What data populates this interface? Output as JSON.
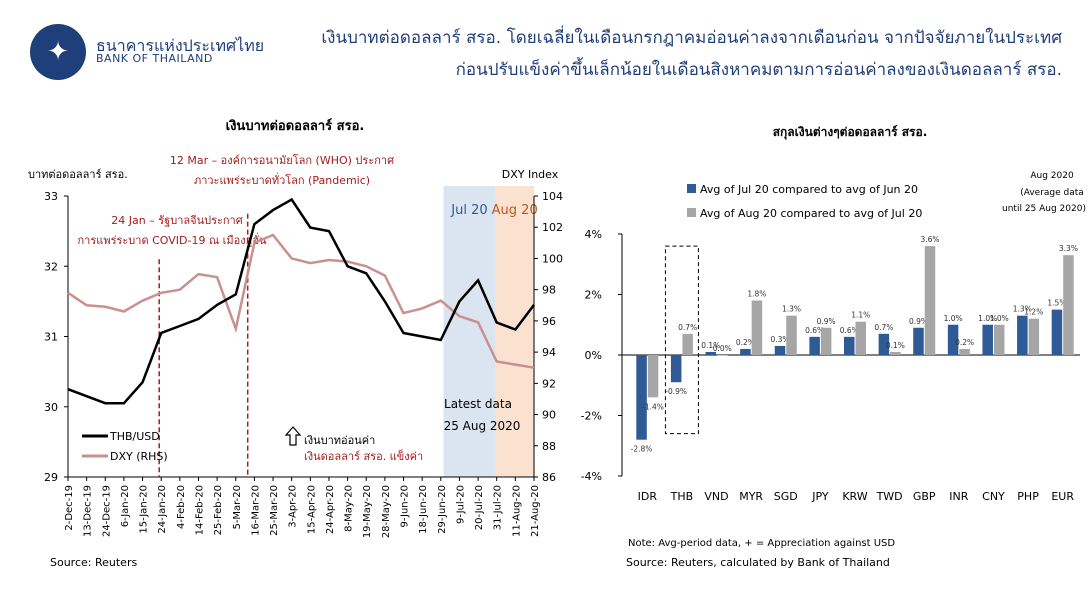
{
  "header": {
    "bank_name_th": "ธนาคารแห่งประเทศไทย",
    "bank_name_en": "BANK OF THAILAND",
    "headline_line1": "เงินบาทต่อดอลลาร์ สรอ. โดยเฉลี่ยในเดือนกรกฎาคมอ่อนค่าลงจากเดือนก่อน จากปัจจัยภายในประเทศ",
    "headline_line2": "ก่อนปรับแข็งค่าขึ้นเล็กน้อยในเดือนสิงหาคมตามการอ่อนค่าลงของเงินดอลลาร์ สรอ."
  },
  "left_chart": {
    "title": "เงินบาทต่อดอลลาร์ สรอ.",
    "y_left_label": "บาทต่อดอลลาร์ สรอ.",
    "y_right_label": "DXY Index",
    "y_left_ticks": [
      "29",
      "30",
      "31",
      "32",
      "33"
    ],
    "y_right_ticks": [
      "86",
      "88",
      "90",
      "92",
      "94",
      "96",
      "98",
      "100",
      "102",
      "104"
    ],
    "x_ticks": [
      "2-Dec-19",
      "13-Dec-19",
      "24-Dec-19",
      "6-Jan-20",
      "15-Jan-20",
      "24-Jan-20",
      "4-Feb-20",
      "14-Feb-20",
      "25-Feb-20",
      "5-Mar-20",
      "16-Mar-20",
      "25-Mar-20",
      "3-Apr-20",
      "15-Apr-20",
      "24-Apr-20",
      "8-May-20",
      "19-May-20",
      "28-May-20",
      "9-Jun-20",
      "18-Jun-20",
      "29-Jun-20",
      "9-Jul-20",
      "20-Jul-20",
      "31-Jul-20",
      "11-Aug-20",
      "21-Aug-20"
    ],
    "band_jul_label": "Jul 20",
    "band_aug_label": "Aug 20",
    "ann1_line1": "12 Mar – องค์การอนามัยโลก (WHO) ประกาศ",
    "ann1_line2": "ภาวะแพร่ระบาดทั่วโลก (Pandemic)",
    "ann2_line1": "24 Jan – รัฐบาลจีนประกาศ",
    "ann2_line2": "การแพร่ระบาด COVID-19 ณ เมืองอู่ฮั่น",
    "latest_line1": "Latest data",
    "latest_line2": "25 Aug 2020",
    "arrow_line1": "เงินบาทอ่อนค่า",
    "arrow_line2": "เงินดอลลาร์ สรอ. แข็งค่า",
    "source": "Source: Reuters"
  },
  "right_chart": {
    "title": "สกุลเงินต่างๆต่อดอลลาร์ สรอ.",
    "legend_jul": "Avg of Jul 20 compared to avg of Jun 20",
    "legend_aug": "Avg of Aug 20 compared to avg of Jul 20",
    "note_line1": "Aug 2020",
    "note_line2": "(Average data",
    "note_line3": "until 25 Aug 2020)",
    "footnote": "Note: Avg-period data, + = Appreciation against USD",
    "source": "Source: Reuters, calculated by Bank of Thailand"
  },
  "colors": {
    "thb": "#000000",
    "dxy": "#c9908f",
    "jul_bar": "#2e5a95",
    "aug_bar": "#a6a6a6",
    "vline": "#a31d1d",
    "band_jul": "#dbe5f1",
    "band_aug": "#fbe2d0",
    "headline": "#1f3f7a"
  },
  "chart_data": [
    {
      "type": "line",
      "title": "เงินบาทต่อดอลลาร์ สรอ.",
      "x": [
        "2-Dec-19",
        "13-Dec-19",
        "24-Dec-19",
        "6-Jan-20",
        "15-Jan-20",
        "24-Jan-20",
        "4-Feb-20",
        "14-Feb-20",
        "25-Feb-20",
        "5-Mar-20",
        "16-Mar-20",
        "25-Mar-20",
        "3-Apr-20",
        "15-Apr-20",
        "24-Apr-20",
        "8-May-20",
        "19-May-20",
        "28-May-20",
        "9-Jun-20",
        "18-Jun-20",
        "29-Jun-20",
        "9-Jul-20",
        "20-Jul-20",
        "31-Jul-20",
        "11-Aug-20",
        "21-Aug-20"
      ],
      "ylabel": "บาทต่อดอลลาร์ สรอ.",
      "ylim": [
        29,
        33
      ],
      "y2label": "DXY Index",
      "y2lim": [
        86,
        104
      ],
      "series": [
        {
          "name": "THB/USD",
          "axis": "left",
          "values": [
            30.25,
            30.15,
            30.05,
            30.05,
            30.35,
            31.05,
            31.15,
            31.25,
            31.45,
            31.6,
            32.6,
            32.8,
            32.95,
            32.55,
            32.5,
            32.0,
            31.9,
            31.5,
            31.05,
            31.0,
            30.95,
            31.5,
            31.8,
            31.2,
            31.1,
            31.45
          ]
        },
        {
          "name": "DXY (RHS)",
          "axis": "right",
          "values": [
            97.8,
            97.0,
            96.9,
            96.6,
            97.3,
            97.8,
            98.0,
            99.0,
            98.8,
            95.5,
            101.0,
            101.5,
            100.0,
            99.7,
            99.9,
            99.8,
            99.5,
            98.9,
            96.5,
            96.8,
            97.3,
            96.3,
            95.9,
            93.4,
            93.2,
            93.0
          ]
        }
      ]
    },
    {
      "type": "bar",
      "title": "สกุลเงินต่างๆต่อดอลลาร์ สรอ.",
      "categories": [
        "IDR",
        "THB",
        "VND",
        "MYR",
        "SGD",
        "JPY",
        "KRW",
        "TWD",
        "GBP",
        "INR",
        "CNY",
        "PHP",
        "EUR"
      ],
      "ylim": [
        -4,
        4
      ],
      "y_ticks": [
        "-4%",
        "-2%",
        "0%",
        "2%",
        "4%"
      ],
      "series": [
        {
          "name": "Avg of Jul 20 compared to avg of Jun 20",
          "values": [
            -2.8,
            -0.9,
            0.1,
            0.2,
            0.3,
            0.6,
            0.6,
            0.7,
            0.9,
            1.0,
            1.0,
            1.3,
            1.5
          ],
          "labels": [
            "-2.8%",
            "-0.9%",
            "0.1%",
            "0.2%",
            "0.3%",
            "0.6%",
            "0.6%",
            "0.7%",
            "0.9%",
            "1.0%",
            "1.0%",
            "1.3%",
            "1.5%"
          ]
        },
        {
          "name": "Avg of Aug 20 compared to avg of Jul 20",
          "values": [
            -1.4,
            0.7,
            0.0,
            1.8,
            1.3,
            0.9,
            1.1,
            0.1,
            3.6,
            0.2,
            1.0,
            1.2,
            3.3
          ],
          "labels": [
            "-1.4%",
            "0.7%",
            "0.0%",
            "1.8%",
            "1.3%",
            "0.9%",
            "1.1%",
            "0.1%",
            "3.6%",
            "0.2%",
            "1.0%",
            "1.2%",
            "3.3%"
          ]
        }
      ]
    }
  ]
}
